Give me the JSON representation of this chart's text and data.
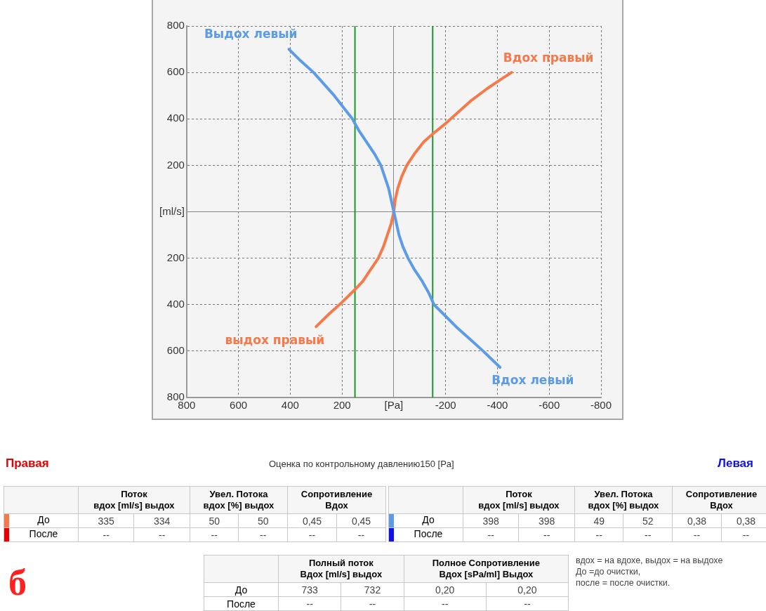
{
  "chart_data": [
    {
      "type": "line",
      "xlim": [
        800,
        -800
      ],
      "ylim": [
        -800,
        800
      ],
      "xticks": [
        800,
        600,
        400,
        200,
        {
          "value": 0,
          "label": "[Pa]"
        },
        -200,
        -400,
        -600,
        -800
      ],
      "yticks": [
        800,
        600,
        400,
        200,
        {
          "value": 0,
          "label": "[ml/s]"
        },
        {
          "value": -200,
          "label": "200"
        },
        {
          "value": -400,
          "label": "400"
        },
        {
          "value": -600,
          "label": "600"
        },
        {
          "value": -800,
          "label": "800"
        }
      ],
      "grid": true,
      "legend": false,
      "marker": "none",
      "line_style": "solid",
      "ref_lines": [
        {
          "axis": "x",
          "value": 150,
          "color": "#1a9a2a"
        },
        {
          "axis": "x",
          "value": -150,
          "color": "#1a9a2a"
        }
      ],
      "series": [
        {
          "color": "#5b9be8",
          "x": [
            405,
            360,
            310,
            270,
            230,
            195,
            160,
            135,
            105,
            75,
            50,
            35,
            20,
            10,
            0,
            -10,
            -20,
            -35,
            -55,
            -80,
            -110,
            -135,
            -155,
            -200,
            -245,
            -295,
            -345,
            -410
          ],
          "values": [
            700,
            650,
            600,
            550,
            500,
            450,
            400,
            350,
            300,
            250,
            200,
            150,
            100,
            50,
            0,
            -50,
            -100,
            -150,
            -200,
            -250,
            -300,
            -350,
            -400,
            -450,
            -500,
            -550,
            -600,
            -670
          ]
        },
        {
          "color": "#f47a4c",
          "x": [
            300,
            250,
            200,
            150,
            120,
            90,
            60,
            40,
            25,
            10,
            0,
            -5,
            -15,
            -30,
            -50,
            -80,
            -115,
            -150,
            -200,
            -250,
            -300,
            -360,
            -420,
            -455
          ],
          "values": [
            -495,
            -440,
            -390,
            -335,
            -300,
            -250,
            -200,
            -150,
            -100,
            -50,
            0,
            50,
            100,
            150,
            200,
            250,
            300,
            335,
            380,
            430,
            480,
            530,
            575,
            600
          ]
        }
      ],
      "annotations": [
        {
          "text": "Выдох левый",
          "x": 405,
          "y": 700
        },
        {
          "text": "Вдох правый",
          "x": -455,
          "y": 600
        },
        {
          "text": "выдох правый",
          "x": 300,
          "y": -495
        },
        {
          "text": "Вдох левый",
          "x": -410,
          "y": -670
        }
      ]
    },
    {
      "type": "other",
      "title": "Правая",
      "subtitle": "Оценка по контрольному давлению150 [Pa]",
      "categories": [
        "Поток\nвдох [ml/s] выдох",
        null,
        "Увел. Потока\nвдох [%] выдох",
        null,
        "Сопротивление\nВдох",
        null
      ],
      "y_categories": [
        "До",
        "После"
      ],
      "cell_labels": [
        [
          "335",
          "334",
          "50",
          "50",
          "0,45",
          "0,45"
        ],
        [
          "--",
          "--",
          "--",
          "--",
          "--",
          "--"
        ]
      ]
    },
    {
      "type": "other",
      "title": "Левая",
      "categories": [
        "Поток\nвдох [ml/s] выдох",
        null,
        "Увел. Потока\nвдох [%] выдох",
        null,
        "Сопротивление\nВдох",
        null
      ],
      "y_categories": [
        "До",
        "После"
      ],
      "cell_labels": [
        [
          "398",
          "398",
          "49",
          "52",
          "0,38",
          "0,38"
        ],
        [
          "--",
          "--",
          "--",
          "--",
          "--",
          "--"
        ]
      ]
    },
    {
      "type": "other",
      "categories": [
        "Полный поток\nВдох [ml/s] выдох",
        null,
        "Полное Сопротивление\nВдох  [sPa/ml]  Выдох",
        null
      ],
      "y_categories": [
        "До",
        "После"
      ],
      "cell_labels": [
        [
          "733",
          "732",
          "0,20",
          "0,20"
        ],
        [
          "--",
          "--",
          "--",
          "--"
        ]
      ],
      "annotations": [
        "вдох = на вдохе, выдох = на выдохе\nДо =до очистки,\nпосле = после очистки.",
        "б"
      ]
    }
  ]
}
